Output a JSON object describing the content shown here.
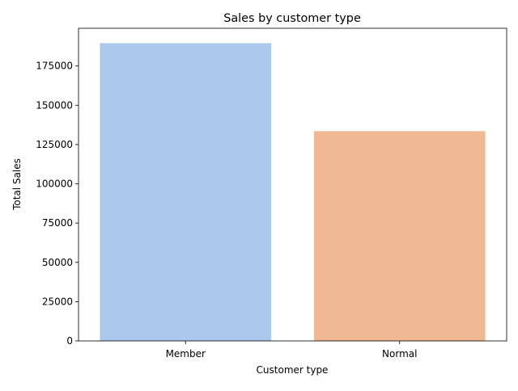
{
  "chart_data": {
    "type": "bar",
    "title": "Sales by customer type",
    "xlabel": "Customer type",
    "ylabel": "Total Sales",
    "categories": [
      "Member",
      "Normal"
    ],
    "values": [
      189500,
      133500
    ],
    "colors": [
      "#abc9ec",
      "#f1b993"
    ],
    "ylim": [
      0,
      199000
    ],
    "yticks": [
      0,
      25000,
      50000,
      75000,
      100000,
      125000,
      150000,
      175000
    ],
    "ytick_labels": [
      "0",
      "25000",
      "50000",
      "75000",
      "100000",
      "125000",
      "150000",
      "175000"
    ],
    "grid": false,
    "legend": "none"
  }
}
